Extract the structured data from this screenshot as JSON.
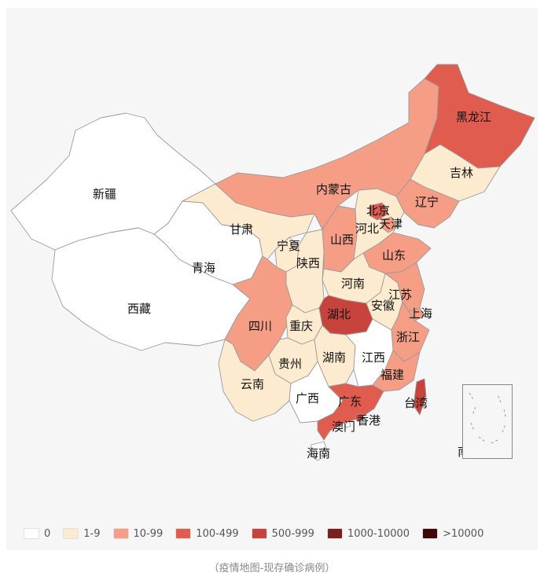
{
  "map": {
    "provinces": [
      {
        "id": "xinjiang",
        "name": "新疆",
        "fill": "#ffffff"
      },
      {
        "id": "xizang",
        "name": "西藏",
        "fill": "#ffffff"
      },
      {
        "id": "qinghai",
        "name": "青海",
        "fill": "#ffffff"
      },
      {
        "id": "gansu",
        "name": "甘肃",
        "fill": "#fdebcf"
      },
      {
        "id": "neimenggu",
        "name": "内蒙古",
        "fill": "#f59e85"
      },
      {
        "id": "heilongjiang",
        "name": "黑龙江",
        "fill": "#e05c4e"
      },
      {
        "id": "jilin",
        "name": "吉林",
        "fill": "#fdebcf"
      },
      {
        "id": "liaoning",
        "name": "辽宁",
        "fill": "#f59e85"
      },
      {
        "id": "ningxia",
        "name": "宁夏",
        "fill": "#fdebcf"
      },
      {
        "id": "shaanxi",
        "name": "陕西",
        "fill": "#fdebcf"
      },
      {
        "id": "shanxi",
        "name": "山西",
        "fill": "#f59e85"
      },
      {
        "id": "hebei",
        "name": "河北",
        "fill": "#fdebcf"
      },
      {
        "id": "beijing",
        "name": "北京",
        "fill": "#e05c4e"
      },
      {
        "id": "tianjin",
        "name": "天津",
        "fill": "#f59e85"
      },
      {
        "id": "shandong",
        "name": "山东",
        "fill": "#f59e85"
      },
      {
        "id": "henan",
        "name": "河南",
        "fill": "#fdebcf"
      },
      {
        "id": "sichuan",
        "name": "四川",
        "fill": "#f59e85"
      },
      {
        "id": "chongqing",
        "name": "重庆",
        "fill": "#fdebcf"
      },
      {
        "id": "hubei",
        "name": "湖北",
        "fill": "#c9433d"
      },
      {
        "id": "anhui",
        "name": "安徽",
        "fill": "#fdebcf"
      },
      {
        "id": "jiangsu",
        "name": "江苏",
        "fill": "#f59e85"
      },
      {
        "id": "shanghai",
        "name": "上海",
        "fill": "#f59e85"
      },
      {
        "id": "zhejiang",
        "name": "浙江",
        "fill": "#f59e85"
      },
      {
        "id": "guizhou",
        "name": "贵州",
        "fill": "#fdebcf"
      },
      {
        "id": "hunan",
        "name": "湖南",
        "fill": "#fdebcf"
      },
      {
        "id": "jiangxi",
        "name": "江西",
        "fill": "#ffffff"
      },
      {
        "id": "fujian",
        "name": "福建",
        "fill": "#f59e85"
      },
      {
        "id": "yunnan",
        "name": "云南",
        "fill": "#fdebcf"
      },
      {
        "id": "guangxi",
        "name": "广西",
        "fill": "#ffffff"
      },
      {
        "id": "guangdong",
        "name": "广东",
        "fill": "#e05c4e"
      },
      {
        "id": "hongkong",
        "name": "香港",
        "fill": "#c9433d"
      },
      {
        "id": "macau",
        "name": "澳门",
        "fill": "#ffffff"
      },
      {
        "id": "hainan",
        "name": "海南",
        "fill": "#ffffff"
      },
      {
        "id": "taiwan",
        "name": "台湾",
        "fill": "#c9433d"
      },
      {
        "id": "nanhai",
        "name": "南海诸岛",
        "fill": "#f6f6f6"
      }
    ]
  },
  "legend": {
    "items": [
      {
        "label": "0",
        "color": "#ffffff"
      },
      {
        "label": "1-9",
        "color": "#fdebcf"
      },
      {
        "label": "10-99",
        "color": "#f59e85"
      },
      {
        "label": "100-499",
        "color": "#e05c4e"
      },
      {
        "label": "500-999",
        "color": "#c9433d"
      },
      {
        "label": "1000-10000",
        "color": "#7a1f1f"
      },
      {
        "label": ">10000",
        "color": "#3d0a0a"
      }
    ]
  },
  "caption": "（疫情地图-现存确诊病例）"
}
